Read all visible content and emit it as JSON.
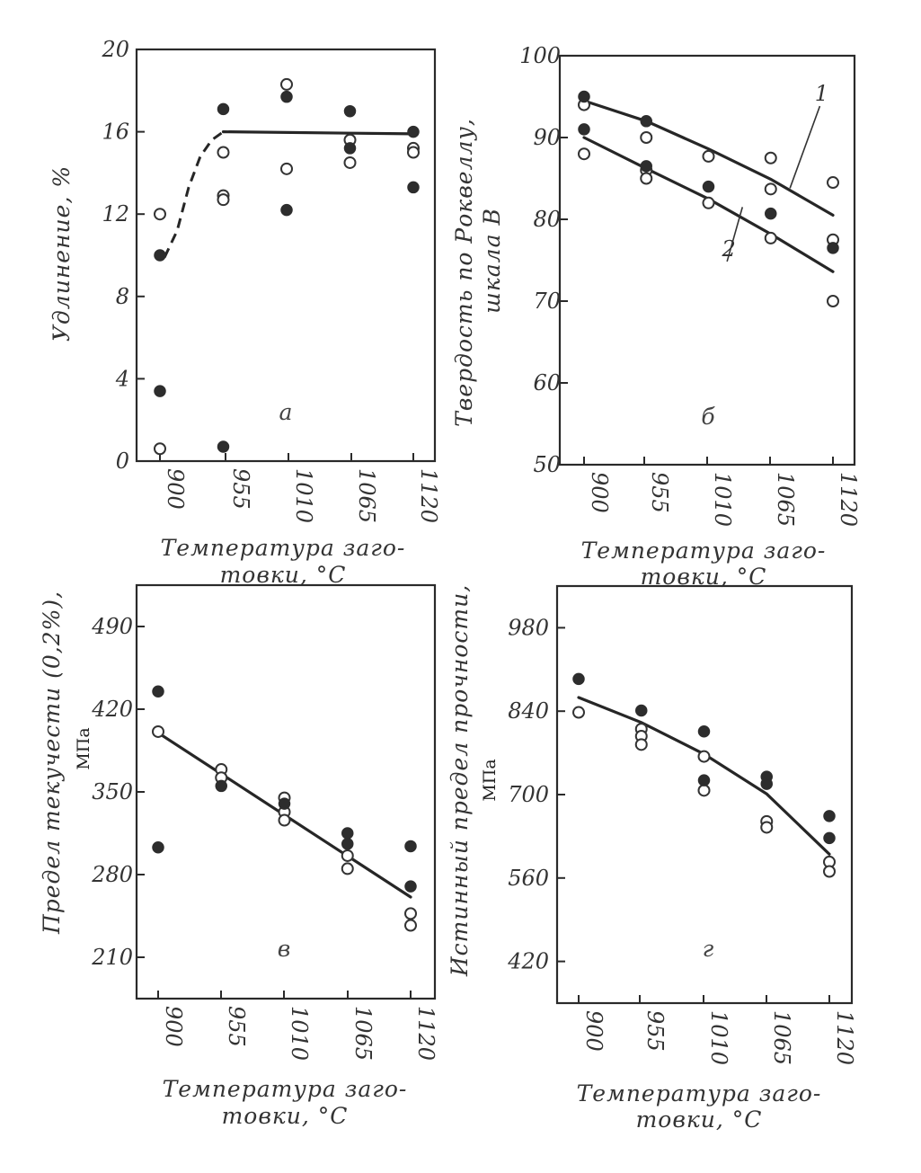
{
  "chart_data": [
    {
      "type": "scatter",
      "panel_label": "а",
      "xlabel": "Температура заготовки, °С",
      "xlabel_lines": [
        "Температура заго-",
        "товки, °С"
      ],
      "ylabel": "Удлинение, %",
      "ylabel_lines": [
        "Удлинение, %"
      ],
      "unit_label": "",
      "x_ticks": [
        "900",
        "955",
        "1010",
        "1065",
        "1120"
      ],
      "y_ticks": [
        "0",
        "4",
        "8",
        "12",
        "16",
        "20"
      ],
      "xlim": [
        900,
        1120
      ],
      "ylim": [
        0,
        20
      ],
      "series": [
        {
          "marker": "open",
          "points": [
            [
              900,
              12.0
            ],
            [
              900,
              0.6
            ],
            [
              955,
              15.0
            ],
            [
              955,
              12.9
            ],
            [
              955,
              12.7
            ],
            [
              1010,
              18.3
            ],
            [
              1010,
              14.2
            ],
            [
              1065,
              15.6
            ],
            [
              1065,
              14.5
            ],
            [
              1120,
              15.2
            ],
            [
              1120,
              15.0
            ]
          ]
        },
        {
          "marker": "filled",
          "points": [
            [
              900,
              10.0
            ],
            [
              900,
              3.4
            ],
            [
              955,
              17.1
            ],
            [
              955,
              0.7
            ],
            [
              1010,
              17.7
            ],
            [
              1010,
              12.2
            ],
            [
              1065,
              17.0
            ],
            [
              1065,
              15.2
            ],
            [
              1120,
              16.0
            ],
            [
              1120,
              13.3
            ]
          ]
        }
      ],
      "fit_lines": [
        {
          "style": "dashed",
          "points": [
            [
              904,
              9.9
            ],
            [
              915,
              11.2
            ],
            [
              925,
              13.3
            ],
            [
              935,
              14.8
            ],
            [
              945,
              15.6
            ],
            [
              955,
              16.0
            ]
          ]
        },
        {
          "style": "solid",
          "points": [
            [
              955,
              16.0
            ],
            [
              1120,
              15.9
            ]
          ]
        }
      ],
      "curve_labels": []
    },
    {
      "type": "scatter",
      "panel_label": "б",
      "xlabel": "Температура заготовки, °С",
      "xlabel_lines": [
        "Температура заго-",
        "товки, °С"
      ],
      "ylabel": "Твердость по Роквеллу, шкала В",
      "ylabel_lines": [
        "Твердость по Роквеллу,",
        "шкала В"
      ],
      "unit_label": "",
      "x_ticks": [
        "900",
        "955",
        "1010",
        "1065",
        "1120"
      ],
      "y_ticks": [
        "50",
        "60",
        "70",
        "80",
        "90",
        "100"
      ],
      "xlim": [
        900,
        1120
      ],
      "ylim": [
        50,
        100
      ],
      "series": [
        {
          "marker": "open",
          "points": [
            [
              900,
              94.0
            ],
            [
              900,
              88.0
            ],
            [
              955,
              90.0
            ],
            [
              955,
              86.0
            ],
            [
              955,
              85.0
            ],
            [
              1010,
              87.7
            ],
            [
              1010,
              82.0
            ],
            [
              1065,
              87.5
            ],
            [
              1065,
              83.7
            ],
            [
              1065,
              77.7
            ],
            [
              1120,
              84.5
            ],
            [
              1120,
              77.5
            ],
            [
              1120,
              70.0
            ]
          ]
        },
        {
          "marker": "filled",
          "points": [
            [
              900,
              95.0
            ],
            [
              900,
              91.0
            ],
            [
              955,
              92.0
            ],
            [
              955,
              86.5
            ],
            [
              1010,
              84.0
            ],
            [
              1065,
              80.7
            ],
            [
              1120,
              76.5
            ]
          ]
        }
      ],
      "fit_lines": [
        {
          "style": "solid",
          "name": "1",
          "points": [
            [
              900,
              94.5
            ],
            [
              955,
              92.0
            ],
            [
              1010,
              88.6
            ],
            [
              1065,
              84.9
            ],
            [
              1120,
              80.5
            ]
          ]
        },
        {
          "style": "solid",
          "name": "2",
          "points": [
            [
              900,
              90.0
            ],
            [
              955,
              86.2
            ],
            [
              1010,
              82.5
            ],
            [
              1065,
              78.2
            ],
            [
              1120,
              73.6
            ]
          ]
        }
      ],
      "curve_labels": [
        {
          "text": "1",
          "x": 1110,
          "y": 94.5,
          "to": [
            1082,
            83.8
          ]
        },
        {
          "text": "2",
          "x": 1028,
          "y": 75.5,
          "to": [
            1040,
            81.5
          ]
        }
      ]
    },
    {
      "type": "scatter",
      "panel_label": "в",
      "xlabel": "Температура заготовки, °С",
      "xlabel_lines": [
        "Температура заго-",
        "товки, °С"
      ],
      "ylabel": "Предел текучести (0,2%),",
      "ylabel_lines": [
        "Предел текучести (0,2%),"
      ],
      "unit_label": "МПа",
      "x_ticks": [
        "900",
        "955",
        "1010",
        "1065",
        "1120"
      ],
      "y_ticks": [
        "210",
        "280",
        "350",
        "420",
        "490"
      ],
      "xlim": [
        900,
        1120
      ],
      "ylim": [
        175,
        525
      ],
      "series": [
        {
          "marker": "open",
          "points": [
            [
              900,
              401
            ],
            [
              955,
              369
            ],
            [
              955,
              362
            ],
            [
              1010,
              345
            ],
            [
              1010,
              333
            ],
            [
              1010,
              326
            ],
            [
              1065,
              296
            ],
            [
              1065,
              285
            ],
            [
              1120,
              247
            ],
            [
              1120,
              237
            ]
          ]
        },
        {
          "marker": "filled",
          "points": [
            [
              900,
              435
            ],
            [
              900,
              303
            ],
            [
              955,
              355
            ],
            [
              1010,
              340
            ],
            [
              1065,
              315
            ],
            [
              1065,
              306
            ],
            [
              1120,
              304
            ],
            [
              1120,
              270
            ]
          ]
        }
      ],
      "fit_lines": [
        {
          "style": "solid",
          "points": [
            [
              900,
              400
            ],
            [
              1120,
              261
            ]
          ]
        }
      ],
      "curve_labels": []
    },
    {
      "type": "scatter",
      "panel_label": "г",
      "xlabel": "Температура заготовки, °С",
      "xlabel_lines": [
        "Температура заго-",
        "товки, °С"
      ],
      "ylabel": "Истинный предел прочности,",
      "ylabel_lines": [
        "Истинный предел прочности,"
      ],
      "unit_label": "МПа",
      "x_ticks": [
        "900",
        "955",
        "1010",
        "1065",
        "1120"
      ],
      "y_ticks": [
        "420",
        "560",
        "700",
        "840",
        "980"
      ],
      "xlim": [
        900,
        1120
      ],
      "ylim": [
        350,
        1050
      ],
      "series": [
        {
          "marker": "open",
          "points": [
            [
              900,
              838
            ],
            [
              955,
              810
            ],
            [
              955,
              798
            ],
            [
              955,
              784
            ],
            [
              1010,
              764
            ],
            [
              1010,
              707
            ],
            [
              1065,
              655
            ],
            [
              1065,
              645
            ],
            [
              1120,
              587
            ],
            [
              1120,
              571
            ]
          ]
        },
        {
          "marker": "filled",
          "points": [
            [
              900,
              894
            ],
            [
              955,
              841
            ],
            [
              1010,
              806
            ],
            [
              1010,
              724
            ],
            [
              1065,
              730
            ],
            [
              1065,
              718
            ],
            [
              1120,
              664
            ],
            [
              1120,
              627
            ]
          ]
        }
      ],
      "fit_lines": [
        {
          "style": "solid",
          "points": [
            [
              900,
              863
            ],
            [
              955,
              821
            ],
            [
              1010,
              768
            ],
            [
              1065,
              701
            ],
            [
              1120,
              600
            ]
          ]
        }
      ],
      "curve_labels": []
    }
  ]
}
